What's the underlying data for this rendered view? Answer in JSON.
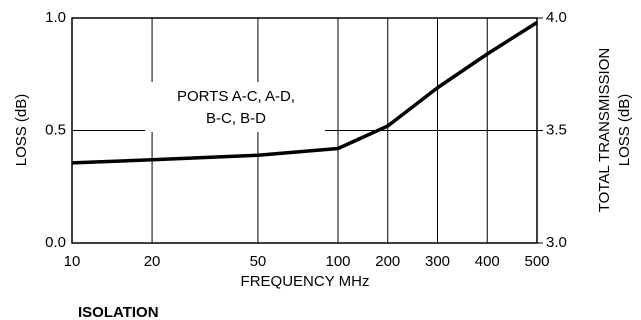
{
  "chart_data": {
    "type": "line",
    "ylabel": "LOSS (dB)",
    "y2label": [
      "TOTAL TRANSMISSION",
      "LOSS (dB)"
    ],
    "xlabel": "FREQUENCY MHz",
    "annotation": [
      "PORTS A-C, A-D,",
      "B-C, B-D"
    ],
    "caption": "ISOLATION",
    "x_segments": [
      {
        "xlim": [
          10,
          100
        ],
        "scale": "log"
      },
      {
        "xlim": [
          100,
          500
        ],
        "scale": "linear"
      }
    ],
    "x": [
      10,
      20,
      50,
      100,
      150,
      200,
      300,
      400,
      500
    ],
    "series": [
      {
        "color": "#000000",
        "values": [
          0.356,
          0.37,
          0.39,
          0.42,
          0.47,
          0.52,
          0.69,
          0.84,
          0.98
        ]
      }
    ],
    "xticks": [
      10,
      20,
      50,
      100,
      200,
      300,
      400,
      500
    ],
    "ylim": [
      0,
      1
    ],
    "yticks": [
      {
        "value": 0,
        "label": "0.0"
      },
      {
        "value": 0.5,
        "label": "0.5"
      },
      {
        "value": 1,
        "label": "1.0"
      }
    ],
    "y2lim": [
      3,
      4
    ],
    "y2ticks": [
      {
        "value": 3,
        "label": "3.0"
      },
      {
        "value": 3.5,
        "label": "3.5"
      },
      {
        "value": 4,
        "label": "4.0"
      }
    ],
    "grid": true
  }
}
